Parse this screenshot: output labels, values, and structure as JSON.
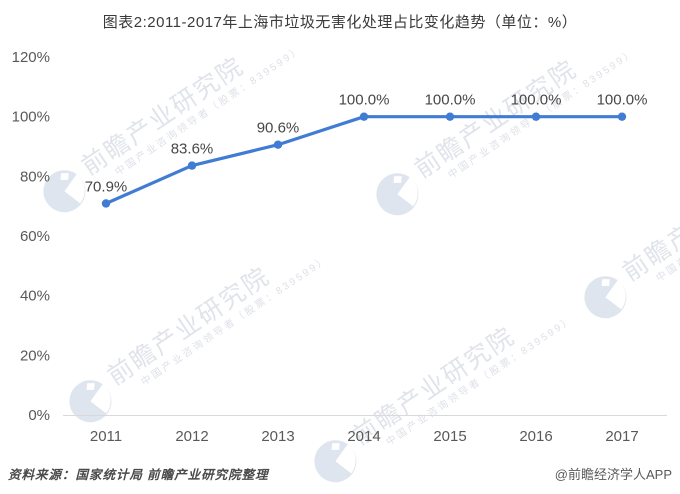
{
  "title": "图表2:2011-2017年上海市垃圾无害化处理占比变化趋势（单位：%）",
  "chart_data": {
    "type": "line",
    "title": "图表2:2011-2017年上海市垃圾无害化处理占比变化趋势（单位：%）",
    "categories": [
      "2011",
      "2012",
      "2013",
      "2014",
      "2015",
      "2016",
      "2017"
    ],
    "values": [
      70.9,
      83.6,
      90.6,
      100.0,
      100.0,
      100.0,
      100.0
    ],
    "data_labels": [
      "70.9%",
      "83.6%",
      "90.6%",
      "100.0%",
      "100.0%",
      "100.0%",
      "100.0%"
    ],
    "y_ticks": {
      "labels": [
        "0%",
        "20%",
        "40%",
        "60%",
        "80%",
        "100%",
        "120%"
      ],
      "values": [
        0,
        20,
        40,
        60,
        80,
        100,
        120
      ]
    },
    "ylim": [
      0,
      120
    ],
    "xlabel": "",
    "ylabel": "",
    "grid": false,
    "legend": "none",
    "unit": "%",
    "line_color": "#407bd4",
    "marker_color": "#407bd4",
    "axis_color": "#d9d9d9",
    "tick_color": "#595959",
    "label_color": "#474747"
  },
  "watermark": {
    "brand": "前瞻产业研究院",
    "slogan": "中国产业咨询领导者（股票：839599）"
  },
  "footer": {
    "source": "资料来源：国家统计局 前瞻产业研究院整理",
    "credit": "@前瞻经济学人APP"
  }
}
